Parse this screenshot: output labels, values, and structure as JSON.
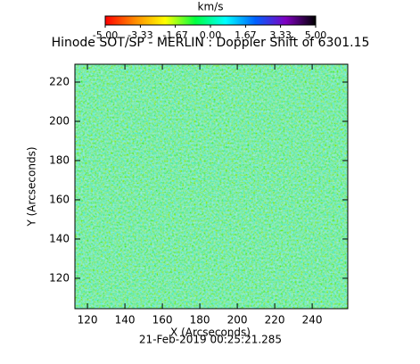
{
  "chart_data": {
    "type": "image",
    "title": "Hinode SOT/SP - MERLIN : Doppler Shift of 6301.15",
    "colorbar_label": "km/s",
    "colorbar_lim": [
      -5,
      5
    ],
    "colorbar_ticks": [
      {
        "value": -5,
        "label": "-5.00"
      },
      {
        "value": -3.33,
        "label": "-3.33"
      },
      {
        "value": -1.67,
        "label": "-1.67"
      },
      {
        "value": 0,
        "label": "0.00"
      },
      {
        "value": 1.67,
        "label": "1.67"
      },
      {
        "value": 3.33,
        "label": "3.33"
      },
      {
        "value": 5,
        "label": "5.00"
      }
    ],
    "colorbar_colors": [
      "#ff0000",
      "#ff8c00",
      "#ffff00",
      "#00ff40",
      "#00ffff",
      "#0060ff",
      "#8000c0",
      "#000000"
    ],
    "x_label": "X (Arcseconds)",
    "y_label": "Y (Arcseconds)",
    "xlim": [
      113.3,
      259
    ],
    "ylim": [
      104.5,
      229.1
    ],
    "xticks": [
      120,
      140,
      160,
      180,
      200,
      220,
      240
    ],
    "yticks": [
      120,
      140,
      160,
      180,
      200,
      220
    ],
    "footer": "21-Feb-2019 00:25:21.285"
  }
}
